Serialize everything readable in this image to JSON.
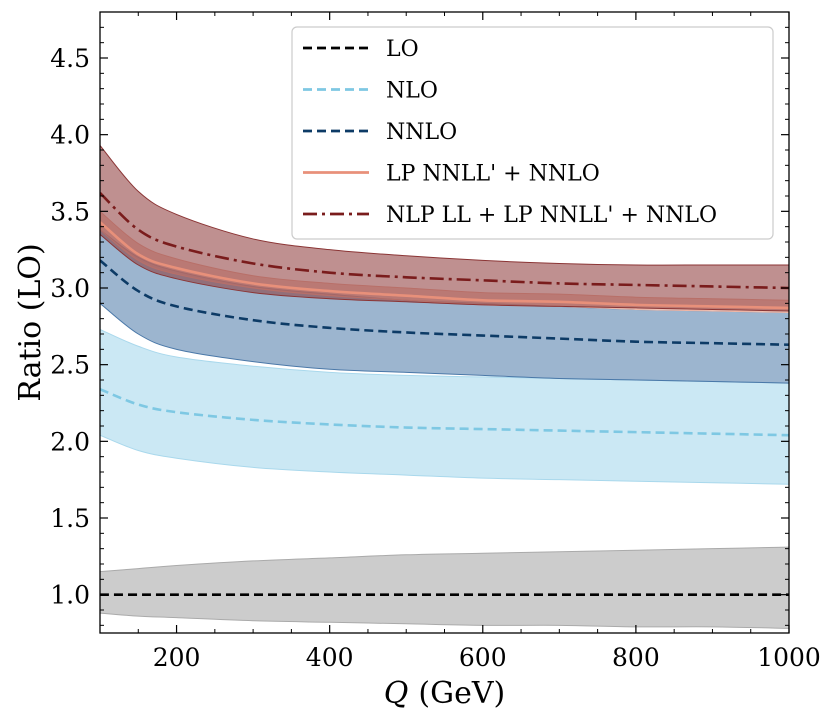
{
  "chart_data": {
    "type": "line",
    "title": "",
    "xlabel_var": "Q",
    "xlabel_unit": "(GeV)",
    "ylabel": "Ratio (LO)",
    "xlim": [
      100,
      1000
    ],
    "ylim": [
      0.75,
      4.8
    ],
    "x_ticks": [
      200,
      400,
      600,
      800,
      1000
    ],
    "x_tick_labels": [
      "200",
      "400",
      "600",
      "800",
      "1000"
    ],
    "y_ticks": [
      1.0,
      1.5,
      2.0,
      2.5,
      3.0,
      3.5,
      4.0,
      4.5
    ],
    "y_tick_labels": [
      "1.0",
      "1.5",
      "2.0",
      "2.5",
      "3.0",
      "3.5",
      "4.0",
      "4.5"
    ],
    "legend_position": "top-right",
    "x": [
      100,
      150,
      200,
      300,
      400,
      500,
      600,
      700,
      800,
      900,
      1000
    ],
    "series": [
      {
        "name": "LO",
        "color": "#000000",
        "style": "dashed",
        "band_color": "#aaaaaa",
        "band_opacity": 0.6,
        "values": [
          1.0,
          1.0,
          1.0,
          1.0,
          1.0,
          1.0,
          1.0,
          1.0,
          1.0,
          1.0,
          1.0
        ],
        "lower": [
          0.88,
          0.86,
          0.85,
          0.83,
          0.82,
          0.81,
          0.8,
          0.8,
          0.79,
          0.79,
          0.78
        ],
        "upper": [
          1.15,
          1.17,
          1.19,
          1.22,
          1.24,
          1.26,
          1.27,
          1.28,
          1.29,
          1.3,
          1.31
        ]
      },
      {
        "name": "NLO",
        "color": "#7ec8e3",
        "style": "dashed",
        "band_color": "#a9d8ec",
        "band_opacity": 0.6,
        "values": [
          2.34,
          2.24,
          2.19,
          2.14,
          2.11,
          2.09,
          2.08,
          2.07,
          2.06,
          2.05,
          2.04
        ],
        "lower": [
          2.04,
          1.94,
          1.89,
          1.83,
          1.8,
          1.78,
          1.76,
          1.75,
          1.74,
          1.73,
          1.72
        ],
        "upper": [
          2.73,
          2.62,
          2.55,
          2.49,
          2.45,
          2.43,
          2.42,
          2.41,
          2.4,
          2.39,
          2.38
        ]
      },
      {
        "name": "NNLO",
        "color": "#0d3b66",
        "style": "dashed",
        "band_color": "#4a78a8",
        "band_opacity": 0.55,
        "values": [
          3.18,
          2.98,
          2.88,
          2.79,
          2.74,
          2.71,
          2.69,
          2.67,
          2.65,
          2.64,
          2.63
        ],
        "lower": [
          2.9,
          2.7,
          2.6,
          2.52,
          2.47,
          2.45,
          2.43,
          2.41,
          2.4,
          2.39,
          2.38
        ],
        "upper": [
          3.38,
          3.2,
          3.11,
          3.01,
          2.96,
          2.92,
          2.9,
          2.88,
          2.86,
          2.85,
          2.84
        ]
      },
      {
        "name": "LP NNLL' + NNLO",
        "color": "#e8907a",
        "style": "solid",
        "band_color": "#f0b7a7",
        "band_opacity": 0.7,
        "values": [
          3.43,
          3.22,
          3.13,
          3.03,
          2.98,
          2.95,
          2.92,
          2.91,
          2.89,
          2.88,
          2.87
        ],
        "lower": [
          3.38,
          3.18,
          3.09,
          3.0,
          2.95,
          2.92,
          2.89,
          2.88,
          2.86,
          2.85,
          2.84
        ],
        "upper": [
          3.5,
          3.29,
          3.19,
          3.08,
          3.03,
          3.0,
          2.97,
          2.96,
          2.94,
          2.93,
          2.92
        ]
      },
      {
        "name": "NLP LL + LP NNLL' + NNLO",
        "color": "#7a1c1c",
        "style": "dashdot",
        "band_color": "#8b3535",
        "band_opacity": 0.55,
        "values": [
          3.62,
          3.38,
          3.27,
          3.16,
          3.1,
          3.07,
          3.05,
          3.03,
          3.02,
          3.01,
          3.0
        ],
        "lower": [
          3.35,
          3.15,
          3.06,
          2.97,
          2.93,
          2.91,
          2.89,
          2.88,
          2.87,
          2.86,
          2.85
        ],
        "upper": [
          3.93,
          3.63,
          3.48,
          3.32,
          3.25,
          3.21,
          3.18,
          3.16,
          3.15,
          3.15,
          3.15
        ]
      }
    ]
  }
}
